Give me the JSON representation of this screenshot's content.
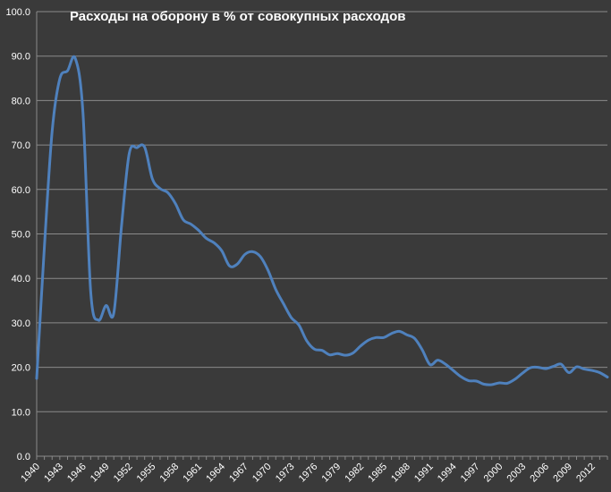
{
  "chart_data": {
    "type": "line",
    "title": "Расходы на оборону в % от совокупных расходов",
    "xlabel": "",
    "ylabel": "",
    "ylim": [
      0,
      100
    ],
    "xlim": [
      1940,
      2014
    ],
    "y_ticks": [
      "0.0",
      "10.0",
      "20.0",
      "30.0",
      "40.0",
      "50.0",
      "60.0",
      "70.0",
      "80.0",
      "90.0",
      "100.0"
    ],
    "x_ticks": [
      "1940",
      "1943",
      "1946",
      "1949",
      "1952",
      "1955",
      "1958",
      "1961",
      "1964",
      "1967",
      "1970",
      "1973",
      "1976",
      "1979",
      "1982",
      "1985",
      "1988",
      "1991",
      "1994",
      "1997",
      "2000",
      "2003",
      "2006",
      "2009",
      "2012"
    ],
    "grid": "horizontal",
    "legend": "none",
    "line_color": "#4f81bd",
    "background_color": "#3a3a3a",
    "series": [
      {
        "x": [
          1940,
          1941,
          1942,
          1943,
          1944,
          1945,
          1946,
          1947,
          1948,
          1949,
          1950,
          1951,
          1952,
          1953,
          1954,
          1955,
          1956,
          1957,
          1958,
          1959,
          1960,
          1961,
          1962,
          1963,
          1964,
          1965,
          1966,
          1967,
          1968,
          1969,
          1970,
          1971,
          1972,
          1973,
          1974,
          1975,
          1976,
          1977,
          1978,
          1979,
          1980,
          1981,
          1982,
          1983,
          1984,
          1985,
          1986,
          1987,
          1988,
          1989,
          1990,
          1991,
          1992,
          1993,
          1994,
          1995,
          1996,
          1997,
          1998,
          1999,
          2000,
          2001,
          2002,
          2003,
          2004,
          2005,
          2006,
          2007,
          2008,
          2009,
          2010,
          2011,
          2012,
          2013,
          2014
        ],
        "values": [
          17.5,
          47.1,
          73.0,
          84.9,
          86.7,
          89.5,
          77.3,
          37.1,
          30.6,
          33.9,
          32.2,
          51.8,
          68.1,
          69.4,
          69.5,
          62.4,
          60.2,
          59.3,
          56.8,
          53.2,
          52.2,
          50.8,
          49.0,
          48.0,
          46.2,
          42.8,
          43.2,
          45.4,
          46.0,
          44.9,
          41.8,
          37.5,
          34.3,
          31.2,
          29.5,
          26.0,
          24.1,
          23.8,
          22.8,
          23.1,
          22.7,
          23.2,
          24.8,
          26.1,
          26.7,
          26.7,
          27.6,
          28.1,
          27.3,
          26.5,
          23.9,
          20.6,
          21.6,
          20.7,
          19.3,
          17.9,
          17.0,
          16.9,
          16.2,
          16.1,
          16.5,
          16.4,
          17.3,
          18.7,
          19.9,
          20.0,
          19.7,
          20.2,
          20.7,
          18.8,
          20.1,
          19.6,
          19.3,
          18.8,
          17.8
        ]
      }
    ]
  }
}
